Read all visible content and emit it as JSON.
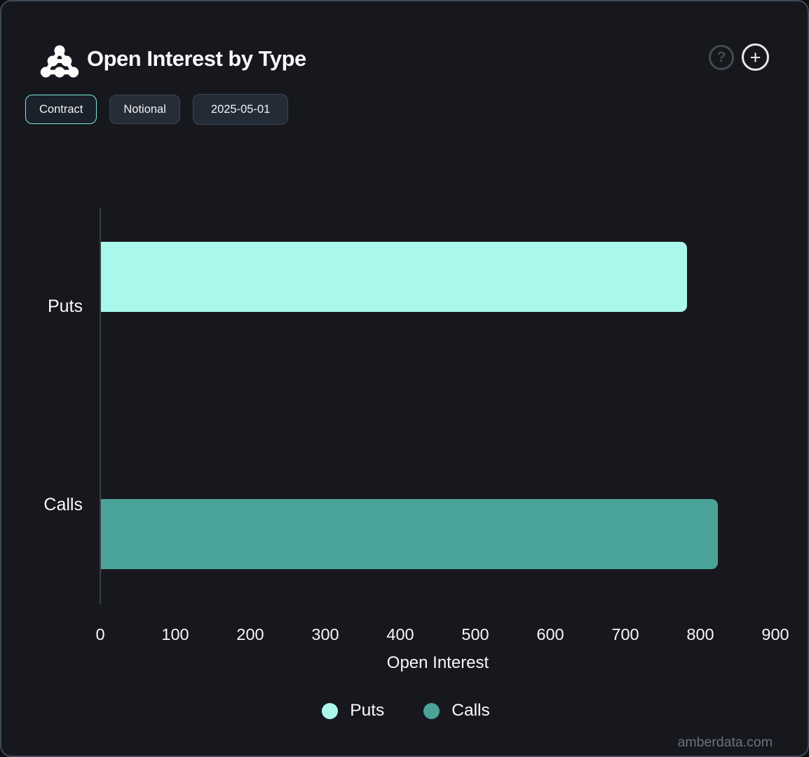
{
  "header": {
    "title": "Open Interest by Type",
    "logo_name": "amberdata-logo",
    "help_glyph": "?",
    "add_glyph": "+"
  },
  "toolbar": {
    "buttons": [
      {
        "label": "Contract",
        "active": true
      },
      {
        "label": "Notional",
        "active": false
      },
      {
        "label": "2025-05-01",
        "active": false
      }
    ]
  },
  "chart_data": {
    "type": "bar",
    "orientation": "horizontal",
    "title": "Open Interest by Type",
    "categories": [
      "Puts",
      "Calls"
    ],
    "values": [
      782,
      823
    ],
    "series_colors": [
      "#a9f8eb",
      "#4aa398"
    ],
    "xlabel": "Open Interest",
    "xlim": [
      0,
      900
    ],
    "xticks": [
      0,
      100,
      200,
      300,
      400,
      500,
      600,
      700,
      800,
      900
    ],
    "grid": false,
    "legend_position": "bottom",
    "legend": [
      {
        "label": "Puts",
        "color": "#a9f8eb"
      },
      {
        "label": "Calls",
        "color": "#4aa398"
      }
    ]
  },
  "footer": {
    "watermark": "amberdata.com"
  },
  "colors": {
    "panel_background": "#16181d",
    "panel_border": "#3e4a5a",
    "accent_mint": "#7ce9d8",
    "axis_line": "#3b4046",
    "bar_puts": "#a9f8eb",
    "bar_calls": "#4aa398",
    "text_primary": "#f3f4f6",
    "watermark_text": "#6b7280"
  }
}
